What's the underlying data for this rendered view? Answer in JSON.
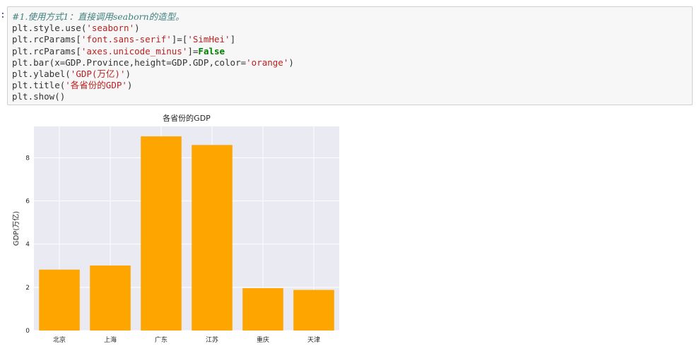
{
  "cell": {
    "prompt": ":",
    "lines": [
      [
        {
          "t": "#1.使用方式1：直接调用seaborn的造型。",
          "c": "cmt"
        }
      ],
      [
        {
          "t": "plt.style.use(",
          "c": "par"
        },
        {
          "t": "'seaborn'",
          "c": "str"
        },
        {
          "t": ")",
          "c": "par"
        }
      ],
      [
        {
          "t": "plt.rcParams[",
          "c": "par"
        },
        {
          "t": "'font.sans-serif'",
          "c": "str"
        },
        {
          "t": "]=[",
          "c": "par"
        },
        {
          "t": "'SimHei'",
          "c": "str"
        },
        {
          "t": "]",
          "c": "par"
        }
      ],
      [
        {
          "t": "plt.rcParams[",
          "c": "par"
        },
        {
          "t": "'axes.unicode_minus'",
          "c": "str"
        },
        {
          "t": "]=",
          "c": "par"
        },
        {
          "t": "False",
          "c": "kw"
        }
      ],
      [
        {
          "t": "plt.bar(x=GDP.Province,height=GDP.GDP,color=",
          "c": "par"
        },
        {
          "t": "'orange'",
          "c": "str"
        },
        {
          "t": ")",
          "c": "par"
        }
      ],
      [
        {
          "t": "plt.ylabel(",
          "c": "par"
        },
        {
          "t": "'GDP(万亿)'",
          "c": "str"
        },
        {
          "t": ")",
          "c": "par"
        }
      ],
      [
        {
          "t": "plt.title(",
          "c": "par"
        },
        {
          "t": "'各省份的GDP'",
          "c": "str"
        },
        {
          "t": ")",
          "c": "par"
        }
      ],
      [
        {
          "t": "plt.show()",
          "c": "par"
        }
      ]
    ]
  },
  "chart_data": {
    "type": "bar",
    "title": "各省份的GDP",
    "xlabel": "",
    "ylabel": "GDP(万亿)",
    "categories": [
      "北京",
      "上海",
      "广东",
      "江苏",
      "重庆",
      "天津"
    ],
    "values": [
      2.82,
      3.01,
      8.99,
      8.59,
      1.96,
      1.88
    ],
    "ylim": [
      0,
      9.45
    ],
    "yticks": [
      0,
      2,
      4,
      6,
      8
    ],
    "grid": true,
    "colors": {
      "bar": "#ffa500",
      "plot_bg": "#eaeaf2",
      "grid": "#ffffff",
      "tick_text": "#262626"
    }
  }
}
